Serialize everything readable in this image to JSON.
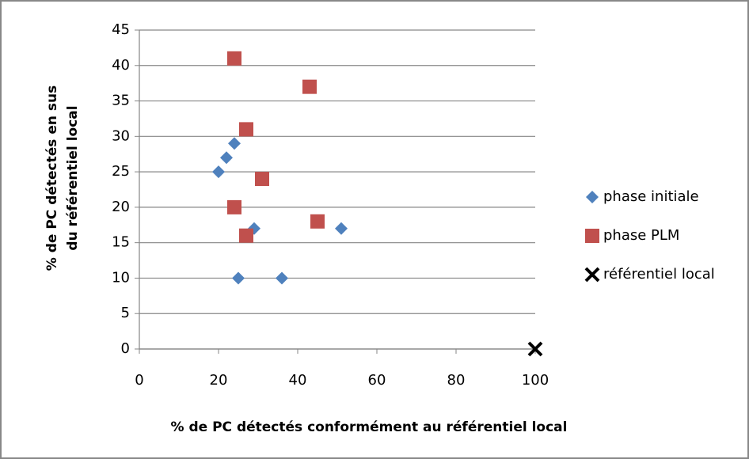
{
  "chart_data": {
    "type": "scatter",
    "xlabel": "% de PC détectés conformément au référentiel local",
    "ylabel": [
      "% de PC détectés en sus",
      "du référentiel local"
    ],
    "xlim": [
      0,
      100
    ],
    "xticks": [
      0,
      20,
      40,
      60,
      80,
      100
    ],
    "ylim": [
      0,
      45
    ],
    "yticks": [
      0,
      5,
      10,
      15,
      20,
      25,
      30,
      35,
      40,
      45
    ],
    "grid": true,
    "legend": "right",
    "series": [
      {
        "name": "phase initiale",
        "color": "#4f81bd",
        "marker": "diamond",
        "x": [
          20,
          22,
          24,
          25,
          29,
          36,
          51
        ],
        "y": [
          25,
          27,
          29,
          10,
          17,
          10,
          17
        ]
      },
      {
        "name": "phase PLM",
        "color": "#c0504d",
        "marker": "square",
        "x": [
          24,
          43,
          27,
          31,
          24,
          27,
          45
        ],
        "y": [
          41,
          37,
          31,
          24,
          20,
          16,
          18
        ]
      },
      {
        "name": "référentiel local",
        "color": "#000000",
        "marker": "x",
        "x": [
          100
        ],
        "y": [
          0
        ]
      }
    ]
  }
}
